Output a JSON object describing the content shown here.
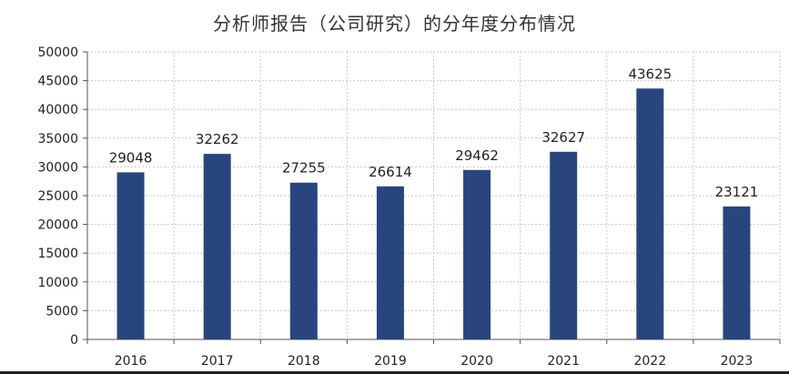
{
  "chart_data": {
    "type": "bar",
    "title": "分析师报告（公司研究）的分年度分布情况",
    "categories": [
      "2016",
      "2017",
      "2018",
      "2019",
      "2020",
      "2021",
      "2022",
      "2023"
    ],
    "values": [
      29048,
      32262,
      27255,
      26614,
      29462,
      32627,
      43625,
      23121
    ],
    "ylim": [
      0,
      50000
    ],
    "yticks": [
      0,
      5000,
      10000,
      15000,
      20000,
      25000,
      30000,
      35000,
      40000,
      45000,
      50000
    ],
    "xlabel": "",
    "ylabel": "",
    "grid": true,
    "data_labels": true,
    "colors": {
      "bar": "#28467D"
    }
  }
}
